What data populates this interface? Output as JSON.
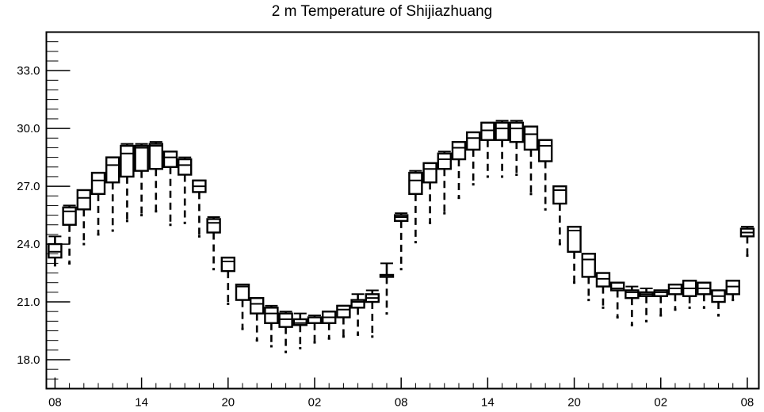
{
  "chart_data": {
    "type": "box",
    "title": "2 m Temperature of Shijiazhuang",
    "xlabel": "",
    "ylabel": "",
    "ylim": [
      16.5,
      35.0
    ],
    "xlim": [
      -0.6,
      48.8
    ],
    "yticks": [
      18.0,
      21.0,
      24.0,
      27.0,
      30.0,
      33.0
    ],
    "ytick_labels": [
      "18.0",
      "21.0",
      "24.0",
      "27.0",
      "30.0",
      "33.0"
    ],
    "xticks": [
      0,
      6,
      12,
      18,
      24,
      30,
      36,
      42,
      48
    ],
    "xtick_labels": [
      "08",
      "14",
      "20",
      "02",
      "08",
      "14",
      "20",
      "02",
      "08"
    ],
    "grid": false,
    "series": [
      {
        "x": [
          0,
          1,
          2,
          3,
          4,
          5,
          6,
          7,
          8,
          9,
          10,
          11,
          12,
          13,
          14,
          15,
          16,
          17,
          18,
          19,
          20,
          21,
          22,
          23,
          24,
          25,
          26,
          27,
          28,
          29,
          30,
          31,
          32,
          33,
          34,
          35,
          36,
          37,
          38,
          39,
          40,
          41,
          42,
          43,
          44,
          45,
          46,
          47,
          48
        ],
        "min": [
          22.9,
          23.0,
          24.0,
          24.5,
          24.7,
          25.2,
          25.5,
          25.7,
          25.0,
          25.1,
          24.4,
          22.7,
          20.9,
          19.6,
          19.0,
          18.7,
          18.4,
          18.6,
          18.9,
          19.1,
          19.2,
          19.3,
          19.2,
          20.4,
          22.7,
          24.1,
          25.1,
          25.6,
          26.4,
          27.1,
          27.5,
          27.5,
          27.6,
          26.6,
          25.8,
          24.0,
          22.0,
          21.1,
          20.7,
          20.2,
          19.8,
          20.0,
          20.3,
          20.6,
          20.7,
          20.7,
          20.3,
          21.1,
          23.4
        ],
        "q1": [
          23.3,
          25.0,
          25.8,
          26.6,
          27.2,
          27.5,
          27.8,
          27.9,
          28.0,
          27.6,
          26.7,
          24.6,
          22.6,
          21.1,
          20.4,
          19.9,
          19.7,
          19.8,
          19.9,
          19.9,
          20.2,
          20.7,
          21.0,
          22.3,
          25.2,
          26.6,
          27.2,
          27.9,
          28.4,
          28.9,
          29.4,
          29.4,
          29.3,
          28.9,
          28.3,
          26.1,
          23.6,
          22.3,
          21.8,
          21.6,
          21.2,
          21.3,
          21.3,
          21.4,
          21.3,
          21.4,
          21.0,
          21.4,
          24.4
        ],
        "median": [
          23.6,
          25.7,
          26.4,
          27.3,
          28.1,
          28.7,
          29.0,
          29.1,
          28.5,
          28.1,
          27.0,
          25.1,
          23.1,
          21.8,
          20.9,
          20.4,
          20.1,
          19.9,
          19.9,
          20.2,
          20.6,
          21.0,
          21.2,
          22.4,
          25.4,
          27.3,
          27.9,
          28.4,
          29.0,
          29.5,
          29.9,
          30.0,
          30.0,
          29.7,
          29.1,
          26.8,
          24.7,
          23.2,
          22.2,
          21.7,
          21.5,
          21.4,
          21.5,
          21.7,
          21.7,
          21.7,
          21.3,
          21.8,
          24.6
        ],
        "q3": [
          24.0,
          25.9,
          26.8,
          27.7,
          28.5,
          29.1,
          29.1,
          29.2,
          28.8,
          28.4,
          27.3,
          25.3,
          23.3,
          21.9,
          21.2,
          20.7,
          20.4,
          20.1,
          20.2,
          20.5,
          20.8,
          21.1,
          21.4,
          22.4,
          25.5,
          27.7,
          28.2,
          28.7,
          29.3,
          29.8,
          30.3,
          30.3,
          30.3,
          30.1,
          29.4,
          27.0,
          24.9,
          23.5,
          22.5,
          22.0,
          21.6,
          21.5,
          21.6,
          21.9,
          22.1,
          22.0,
          21.6,
          22.1,
          24.8
        ],
        "max": [
          24.4,
          26.0,
          26.8,
          27.7,
          28.5,
          29.2,
          29.2,
          29.3,
          28.8,
          28.5,
          27.3,
          25.4,
          23.3,
          21.9,
          21.2,
          20.8,
          20.5,
          20.4,
          20.3,
          20.5,
          20.8,
          21.4,
          21.6,
          23.0,
          25.6,
          27.8,
          28.2,
          28.8,
          29.3,
          29.8,
          30.3,
          30.4,
          30.4,
          30.1,
          29.4,
          27.0,
          24.9,
          23.5,
          22.5,
          22.0,
          21.8,
          21.7,
          21.6,
          21.9,
          22.1,
          22.0,
          21.6,
          22.1,
          24.9
        ]
      }
    ]
  }
}
